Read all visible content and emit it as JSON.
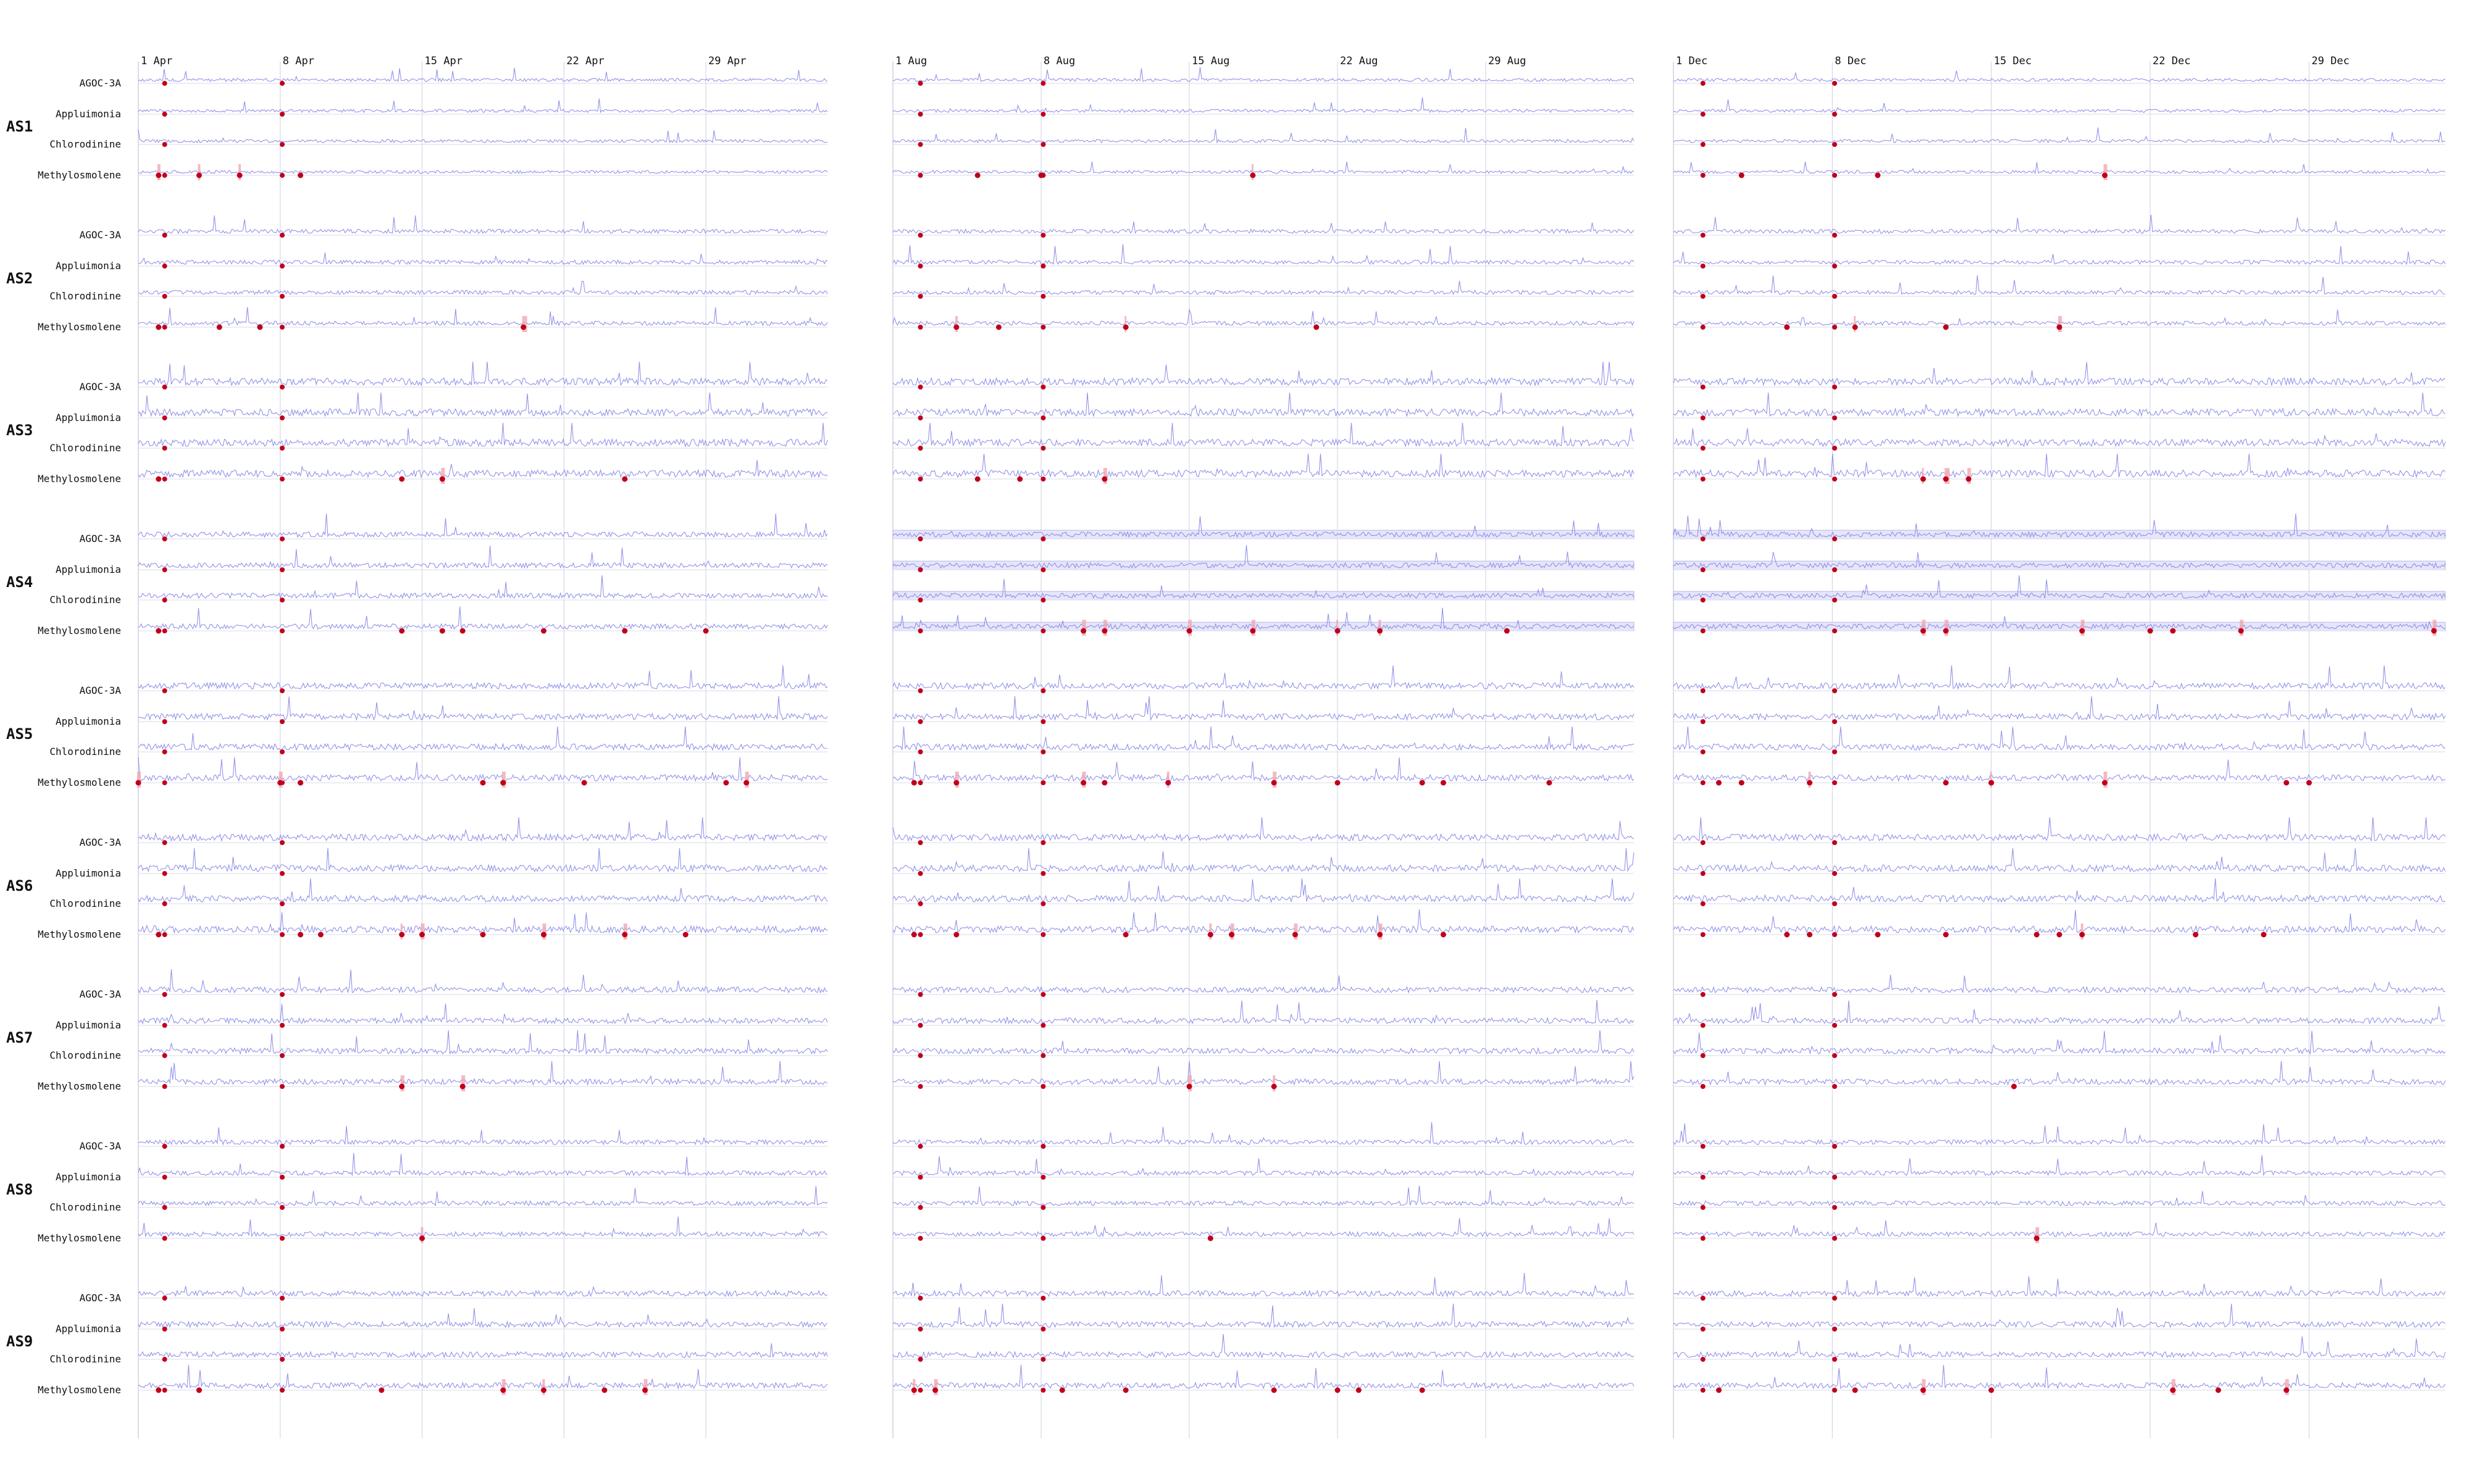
{
  "chart_data": {
    "type": "line",
    "style": {
      "line_color": "#7f7fe6",
      "band_color": "#e6e6fa",
      "anomaly_color": "#c0001a",
      "anomaly_band_color": "#f2a8b2",
      "grid_color": "#d7d7e6",
      "text_color": "#111111"
    },
    "periods": [
      {
        "start": "2014-04-01",
        "days": 34,
        "ticks": [
          {
            "label": "1 Apr",
            "day": 0
          },
          {
            "label": "8 Apr",
            "day": 7
          },
          {
            "label": "15 Apr",
            "day": 14
          },
          {
            "label": "22 Apr",
            "day": 21
          },
          {
            "label": "29 Apr",
            "day": 28
          }
        ]
      },
      {
        "start": "2015-08-01",
        "days": 35,
        "ticks": [
          {
            "label": "1 Aug",
            "day": 0
          },
          {
            "label": "8 Aug",
            "day": 7
          },
          {
            "label": "15 Aug",
            "day": 14
          },
          {
            "label": "22 Aug",
            "day": 21
          },
          {
            "label": "29 Aug",
            "day": 28
          }
        ]
      },
      {
        "start": "2016-12-01",
        "days": 34,
        "ticks": [
          {
            "label": "1 Dec",
            "day": 0
          },
          {
            "label": "8 Dec",
            "day": 7
          },
          {
            "label": "15 Dec",
            "day": 14
          },
          {
            "label": "22 Dec",
            "day": 21
          },
          {
            "label": "29 Dec",
            "day": 28
          }
        ]
      }
    ],
    "sensors": [
      "AGOC-3A",
      "Appluimonia",
      "Chlorodinine",
      "Methylosmolene"
    ],
    "stations": [
      {
        "name": "AS1",
        "volatility": 0.6,
        "anomalies": [
          [
            1,
            5
          ],
          [
            4,
            0
          ],
          [
            3,
            0
          ],
          [
            3,
            4
          ],
          [
            17,
            1
          ],
          [
            19,
            6
          ],
          [
            5,
            4
          ],
          [
            7,
            0
          ],
          [
            9,
            0
          ],
          [
            8,
            0
          ]
        ]
      },
      {
        "name": "AS2",
        "volatility": 0.8,
        "anomalies": [
          [
            1,
            0
          ],
          [
            5,
            0
          ],
          [
            8,
            2
          ],
          [
            4,
            0
          ],
          [
            3,
            4
          ],
          [
            17,
            6
          ],
          [
            19,
            8
          ],
          [
            20,
            0
          ],
          [
            5,
            0
          ],
          [
            6,
            0
          ],
          [
            11,
            1
          ],
          [
            12,
            0
          ]
        ]
      },
      {
        "name": "AS3",
        "volatility": 1.4,
        "anomalies": [
          [
            1,
            0
          ],
          [
            6,
            0
          ],
          [
            12,
            8
          ],
          [
            24,
            0
          ],
          [
            10,
            6
          ],
          [
            11,
            2
          ],
          [
            15,
            6
          ],
          [
            4,
            0
          ],
          [
            13,
            6
          ],
          [
            13,
            0
          ]
        ]
      },
      {
        "name": "AS4",
        "volatility": 1.0,
        "anomalies": [
          [
            1,
            0
          ],
          [
            9,
            6
          ],
          [
            12,
            6
          ],
          [
            16,
            0
          ],
          [
            21,
            2
          ],
          [
            22,
            0
          ],
          [
            24,
            0
          ],
          [
            10,
            6
          ],
          [
            11,
            6
          ],
          [
            15,
            0
          ],
          [
            17,
            6
          ],
          [
            21,
            0
          ],
          [
            28,
            0
          ],
          [
            29,
            0
          ],
          [
            35,
            6
          ],
          [
            13,
            0
          ],
          [
            14,
            6
          ],
          [
            18,
            6
          ],
          [
            20,
            0
          ],
          [
            23,
            4
          ],
          [
            25,
            6
          ]
        ]
      },
      {
        "name": "AS5",
        "volatility": 1.2,
        "anomalies": [
          [
            0,
            6
          ],
          [
            1,
            0
          ],
          [
            2,
            0
          ],
          [
            8,
            0
          ],
          [
            9,
            6
          ],
          [
            12,
            0
          ],
          [
            18,
            6
          ],
          [
            26,
            0
          ],
          [
            28,
            0
          ],
          [
            29,
            0
          ],
          [
            3,
            6
          ],
          [
            6,
            4
          ],
          [
            8,
            0
          ],
          [
            13,
            4
          ],
          [
            14,
            0
          ],
          [
            17,
            0
          ],
          [
            18,
            6
          ],
          [
            19,
            6
          ],
          [
            22,
            0
          ],
          [
            25,
            0
          ],
          [
            27,
            0
          ],
          [
            30,
            6
          ],
          [
            31,
            0
          ],
          [
            3,
            0
          ],
          [
            7,
            6
          ],
          [
            10,
            0
          ],
          [
            14,
            2
          ],
          [
            18,
            0
          ],
          [
            21,
            0
          ]
        ]
      },
      {
        "name": "AS6",
        "volatility": 1.3,
        "anomalies": [
          [
            1,
            0
          ],
          [
            3,
            0
          ],
          [
            5,
            0
          ],
          [
            9,
            0
          ],
          [
            16,
            6
          ],
          [
            17,
            0
          ],
          [
            20,
            6
          ],
          [
            26,
            0
          ],
          [
            6,
            0
          ],
          [
            8,
            0
          ],
          [
            11,
            0
          ],
          [
            12,
            0
          ],
          [
            13,
            2
          ],
          [
            16,
            0
          ],
          [
            18,
            4
          ],
          [
            20,
            0
          ],
          [
            23,
            6
          ],
          [
            26,
            0
          ],
          [
            27,
            0
          ],
          [
            1,
            0
          ],
          [
            9,
            0
          ],
          [
            14,
            6
          ],
          [
            15,
            4
          ],
          [
            16,
            0
          ],
          [
            17,
            0
          ],
          [
            19,
            6
          ],
          [
            23,
            0
          ],
          [
            24,
            6
          ]
        ]
      },
      {
        "name": "AS7",
        "volatility": 1.1,
        "anomalies": [
          [
            13,
            6
          ],
          [
            14,
            6
          ],
          [
            15,
            0
          ],
          [
            16,
            6
          ],
          [
            18,
            4
          ]
        ]
      },
      {
        "name": "AS8",
        "volatility": 0.9,
        "anomalies": [
          [
            14,
            4
          ],
          [
            15,
            0
          ],
          [
            16,
            6
          ]
        ]
      },
      {
        "name": "AS9",
        "volatility": 1.1,
        "anomalies": [
          [
            1,
            0
          ],
          [
            2,
            6
          ],
          [
            8,
            0
          ],
          [
            20,
            4
          ],
          [
            21,
            0
          ],
          [
            22,
            0
          ],
          [
            3,
            0
          ],
          [
            11,
            0
          ],
          [
            14,
            0
          ],
          [
            18,
            6
          ],
          [
            22,
            0
          ],
          [
            24,
            0
          ],
          [
            25,
            6
          ],
          [
            1,
            4
          ],
          [
            2,
            0
          ],
          [
            3,
            0
          ],
          [
            8,
            0
          ],
          [
            11,
            6
          ],
          [
            12,
            0
          ],
          [
            18,
            0
          ],
          [
            22,
            6
          ],
          [
            23,
            0
          ],
          [
            25,
            0
          ],
          [
            27,
            6
          ]
        ]
      }
    ]
  }
}
